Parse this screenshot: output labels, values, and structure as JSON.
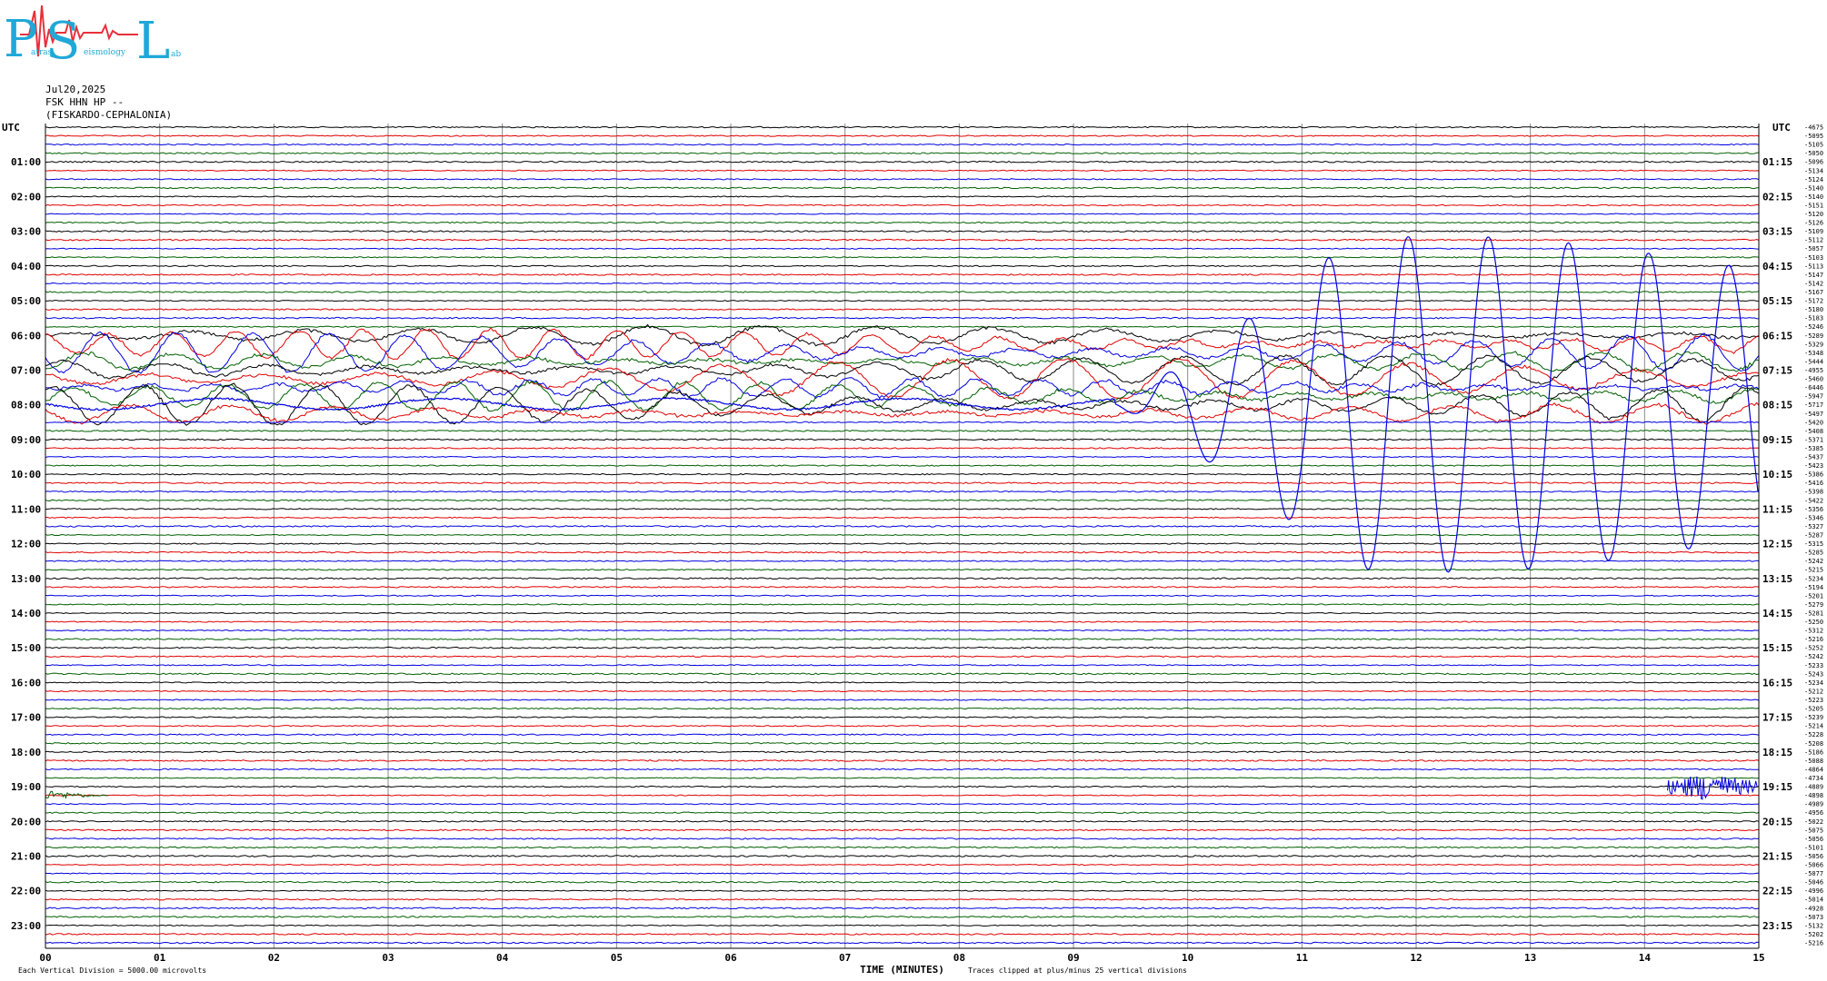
{
  "logo": {
    "big_letters": [
      "P",
      "S",
      "L"
    ],
    "words": [
      "atras",
      "eismology",
      "ab"
    ]
  },
  "header": {
    "date": "Jul20,2025",
    "station": "FSK HHN HP --",
    "location": "(FISKARDO-CEPHALONIA)"
  },
  "chart_data": {
    "type": "line",
    "title": "",
    "xlabel": "TIME (MINUTES)",
    "ylabel": "",
    "utc_label": "UTC",
    "x_ticks": [
      "00",
      "01",
      "02",
      "03",
      "04",
      "05",
      "06",
      "07",
      "08",
      "09",
      "10",
      "11",
      "12",
      "13",
      "14",
      "15"
    ],
    "xlim": [
      0,
      15
    ],
    "left_hour_labels": [
      "01:00",
      "02:00",
      "03:00",
      "04:00",
      "05:00",
      "06:00",
      "07:00",
      "08:00",
      "09:00",
      "10:00",
      "11:00",
      "12:00",
      "13:00",
      "14:00",
      "15:00",
      "16:00",
      "17:00",
      "18:00",
      "19:00",
      "20:00",
      "21:00",
      "22:00",
      "23:00"
    ],
    "right_hour_labels": [
      "01:15",
      "02:15",
      "03:15",
      "04:15",
      "05:15",
      "06:15",
      "07:15",
      "08:15",
      "09:15",
      "10:15",
      "11:15",
      "12:15",
      "13:15",
      "14:15",
      "15:15",
      "16:15",
      "17:15",
      "18:15",
      "19:15",
      "20:15",
      "21:15",
      "22:15",
      "23:15"
    ],
    "trace_colors": [
      "#000000",
      "#e00000",
      "#0000e0",
      "#006000"
    ],
    "trace_offsets": [
      -4675,
      -5095,
      -5105,
      -5050,
      -5096,
      -5134,
      -5124,
      -5140,
      -5140,
      -5151,
      -5120,
      -5126,
      -5109,
      -5112,
      -5057,
      -5103,
      -5113,
      -5147,
      -5142,
      -5167,
      -5172,
      -5180,
      -5183,
      -5246,
      -5289,
      -5329,
      -5348,
      -5444,
      -4955,
      -5460,
      -6446,
      -5947,
      -5717,
      -5497,
      -5420,
      -5408,
      -5371,
      -5385,
      -5437,
      -5423,
      -5386,
      -5416,
      -5398,
      -5422,
      -5356,
      -5346,
      -5327,
      -5287,
      -5315,
      -5285,
      -5242,
      -5215,
      -5234,
      -5194,
      -5201,
      -5279,
      -5281,
      -5250,
      -5312,
      -5216,
      -5252,
      -5242,
      -5233,
      -5243,
      -5234,
      -5212,
      -5223,
      -5205,
      -5239,
      -5214,
      -5228,
      -5208,
      -5186,
      -5088,
      -4864,
      -4734,
      -4889,
      -4898,
      -4989,
      -4956,
      -5022,
      -5075,
      -5056,
      -5101,
      -5056,
      -5066,
      -5077,
      -5046,
      -4996,
      -5014,
      -4928,
      -5073,
      -5132,
      -5202,
      -5216
    ],
    "footer_left": "Each Vertical Division = 5000.00 microvolts",
    "footer_right": "Traces clipped at plus/minus 25 vertical divisions"
  }
}
